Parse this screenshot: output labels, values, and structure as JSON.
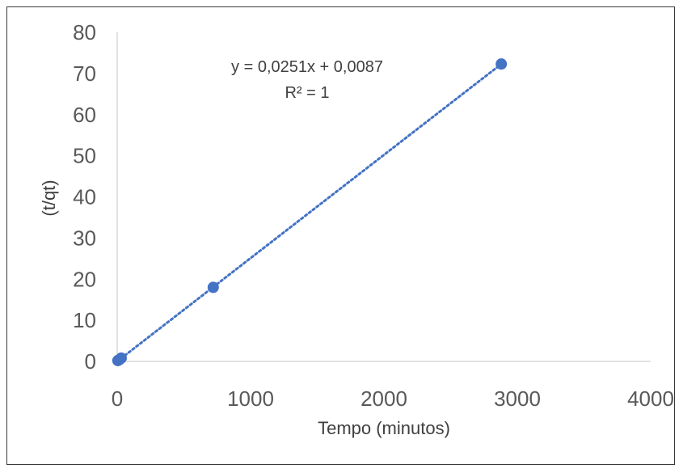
{
  "chart_data": {
    "type": "scatter",
    "title": "",
    "xlabel": "Tempo (minutos)",
    "ylabel": "(t/qt)",
    "xlim": [
      0,
      4000
    ],
    "ylim": [
      0,
      80
    ],
    "x_ticks": [
      "0",
      "1000",
      "2000",
      "3000",
      "4000"
    ],
    "y_ticks": [
      "0",
      "10",
      "20",
      "30",
      "40",
      "50",
      "60",
      "70",
      "80"
    ],
    "series": [
      {
        "points": [
          {
            "x": 5,
            "y": 0.2
          },
          {
            "x": 15,
            "y": 0.4
          },
          {
            "x": 30,
            "y": 0.8
          },
          {
            "x": 720,
            "y": 18
          },
          {
            "x": 2880,
            "y": 72.3
          }
        ],
        "color": "#4472c4"
      }
    ],
    "trendline": {
      "type": "linear",
      "slope": 0.0251,
      "intercept": 0.0087,
      "style": "dotted",
      "color": "#4472c4",
      "equation_label": "y = 0,0251x + 0,0087",
      "r2_label": "R² = 1"
    },
    "grid": false,
    "legend": "none"
  }
}
